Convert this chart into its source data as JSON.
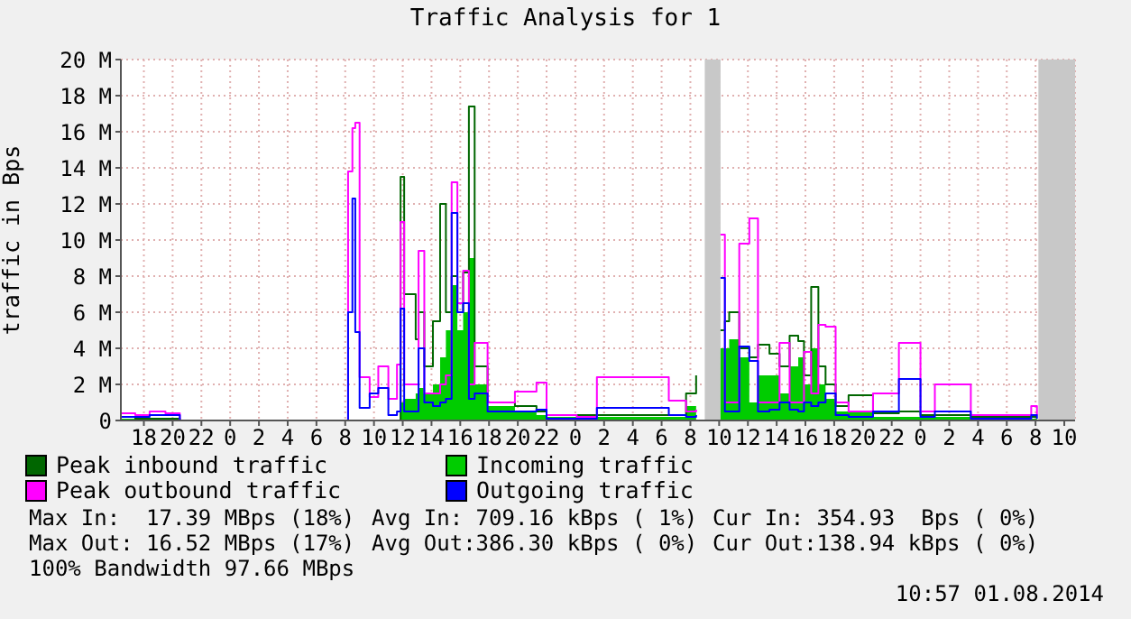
{
  "chart_data": {
    "type": "step",
    "title": "Traffic Analysis for 1",
    "ylabel": "traffic in Bps",
    "x": [
      "2014-07-29T16:24",
      "2014-07-29T17:24",
      "2014-07-29T18:24",
      "2014-07-29T19:30",
      "2014-07-29T20:30",
      "2014-07-30T00:24",
      "2014-07-30T07:48",
      "2014-07-30T08:12",
      "2014-07-30T08:30",
      "2014-07-30T08:42",
      "2014-07-30T09:00",
      "2014-07-30T09:42",
      "2014-07-30T10:18",
      "2014-07-30T11:00",
      "2014-07-30T11:36",
      "2014-07-30T11:51",
      "2014-07-30T12:06",
      "2014-07-30T12:54",
      "2014-07-30T13:06",
      "2014-07-30T13:30",
      "2014-07-30T14:06",
      "2014-07-30T14:36",
      "2014-07-30T15:00",
      "2014-07-30T15:24",
      "2014-07-30T15:48",
      "2014-07-30T16:12",
      "2014-07-30T16:36",
      "2014-07-30T17:00",
      "2014-07-30T17:54",
      "2014-07-30T19:48",
      "2014-07-30T21:18",
      "2014-07-30T22:00",
      "2014-07-31T00:06",
      "2014-07-31T01:30",
      "2014-07-31T06:30",
      "2014-07-31T07:42",
      "2014-07-31T08:24",
      "2014-07-31T09:00",
      "2014-07-31T10:06",
      "2014-07-31T10:24",
      "2014-07-31T10:42",
      "2014-07-31T11:24",
      "2014-07-31T12:06",
      "2014-07-31T12:42",
      "2014-07-31T13:30",
      "2014-07-31T14:12",
      "2014-07-31T14:54",
      "2014-07-31T15:30",
      "2014-07-31T15:54",
      "2014-07-31T16:24",
      "2014-07-31T16:54",
      "2014-07-31T17:24",
      "2014-07-31T18:06",
      "2014-07-31T19:00",
      "2014-07-31T20:42",
      "2014-07-31T22:30",
      "2014-08-01T00:00",
      "2014-08-01T01:00",
      "2014-08-01T03:30",
      "2014-08-01T07:42",
      "2014-08-01T08:06"
    ],
    "series": [
      {
        "name": "Peak inbound traffic",
        "color": "#006600",
        "values": [
          0.2,
          0.1,
          0.1,
          0.1,
          0,
          0,
          0,
          0,
          0,
          0,
          0,
          0,
          0,
          0,
          0,
          13.5,
          7,
          4.5,
          6,
          3,
          5.5,
          12,
          6,
          8,
          6,
          8.2,
          17.4,
          3,
          1,
          0.8,
          0.5,
          0.3,
          0.3,
          0.3,
          0.3,
          1.5,
          2.5,
          null,
          5,
          5.5,
          6,
          4,
          3.5,
          4.2,
          3.7,
          3,
          4.7,
          4.4,
          2.5,
          7.4,
          3,
          2,
          0.8,
          1.4,
          0.4,
          0.5,
          0.3,
          0.3,
          0.2,
          0.2,
          0.2
        ]
      },
      {
        "name": "Incoming traffic",
        "type": "area",
        "color": "#00cc00",
        "values": [
          0.1,
          0.1,
          0.1,
          0.1,
          0,
          0,
          0,
          0,
          0,
          0,
          0,
          0,
          0,
          0,
          0,
          1,
          1.2,
          1.5,
          1.8,
          1.5,
          2,
          3.5,
          5,
          7.5,
          5,
          6,
          9,
          2,
          0.8,
          0.5,
          0.3,
          0.2,
          0.2,
          0.2,
          0.2,
          0.8,
          1.5,
          null,
          4,
          4,
          4.5,
          3.5,
          1,
          2.5,
          2.5,
          1.5,
          3,
          3.5,
          2,
          4,
          2,
          1.2,
          0.5,
          0.5,
          0.2,
          0.2,
          0.2,
          0.2,
          0.1,
          0.1,
          0.1
        ]
      },
      {
        "name": "Peak outbound traffic",
        "color": "#ff00ff",
        "values": [
          0.4,
          0.3,
          0.5,
          0.4,
          0,
          0,
          0,
          13.8,
          16.2,
          16.5,
          2.4,
          1.3,
          3,
          1.2,
          3.1,
          11,
          2,
          2,
          9.4,
          1.5,
          1.5,
          2,
          2.5,
          13.2,
          6.5,
          8.3,
          2,
          4.3,
          1,
          1.6,
          2.1,
          0.3,
          0.2,
          2.4,
          1.1,
          0.5,
          0.6,
          null,
          10.3,
          1,
          1,
          9.8,
          11.2,
          1,
          1,
          4.3,
          1,
          1,
          3.8,
          1.5,
          5.3,
          5.2,
          1,
          0.5,
          1.5,
          4.3,
          0.5,
          2,
          0.3,
          0.8,
          0.3
        ]
      },
      {
        "name": "Outgoing traffic",
        "color": "#0000ff",
        "values": [
          0.2,
          0.2,
          0.3,
          0.3,
          0,
          0,
          0,
          6,
          12.3,
          4.9,
          0.7,
          1.5,
          1.8,
          0.3,
          0.5,
          6.2,
          0.5,
          0.5,
          4,
          1,
          0.8,
          1,
          1.2,
          11.5,
          6,
          6.5,
          1.2,
          1.5,
          0.5,
          0.5,
          0.6,
          0.1,
          0.1,
          0.7,
          0.3,
          0.2,
          0.3,
          null,
          7.9,
          0.5,
          0.5,
          4.1,
          3.3,
          0.5,
          0.6,
          1,
          0.6,
          0.5,
          1,
          0.8,
          1,
          1.5,
          0.3,
          0.2,
          0.5,
          2.3,
          0.2,
          0.5,
          0.1,
          0.3,
          0.1
        ]
      }
    ],
    "xlim": [
      "2014-07-29T16:24",
      "2014-08-01T10:45"
    ],
    "xticks": [
      {
        "value": "2014-07-29T18:00",
        "label": "18"
      },
      {
        "value": "2014-07-29T20:00",
        "label": "20"
      },
      {
        "value": "2014-07-29T22:00",
        "label": "22"
      },
      {
        "value": "2014-07-30T00:00",
        "label": "0"
      },
      {
        "value": "2014-07-30T02:00",
        "label": "2"
      },
      {
        "value": "2014-07-30T04:00",
        "label": "4"
      },
      {
        "value": "2014-07-30T06:00",
        "label": "6"
      },
      {
        "value": "2014-07-30T08:00",
        "label": "8"
      },
      {
        "value": "2014-07-30T10:00",
        "label": "10"
      },
      {
        "value": "2014-07-30T12:00",
        "label": "12"
      },
      {
        "value": "2014-07-30T14:00",
        "label": "14"
      },
      {
        "value": "2014-07-30T16:00",
        "label": "16"
      },
      {
        "value": "2014-07-30T18:00",
        "label": "18"
      },
      {
        "value": "2014-07-30T20:00",
        "label": "20"
      },
      {
        "value": "2014-07-30T22:00",
        "label": "22"
      },
      {
        "value": "2014-07-31T00:00",
        "label": "0"
      },
      {
        "value": "2014-07-31T02:00",
        "label": "2"
      },
      {
        "value": "2014-07-31T04:00",
        "label": "4"
      },
      {
        "value": "2014-07-31T06:00",
        "label": "6"
      },
      {
        "value": "2014-07-31T08:00",
        "label": "8"
      },
      {
        "value": "2014-07-31T10:00",
        "label": "10"
      },
      {
        "value": "2014-07-31T12:00",
        "label": "12"
      },
      {
        "value": "2014-07-31T14:00",
        "label": "14"
      },
      {
        "value": "2014-07-31T16:00",
        "label": "16"
      },
      {
        "value": "2014-07-31T18:00",
        "label": "18"
      },
      {
        "value": "2014-07-31T20:00",
        "label": "20"
      },
      {
        "value": "2014-07-31T22:00",
        "label": "22"
      },
      {
        "value": "2014-08-01T00:00",
        "label": "0"
      },
      {
        "value": "2014-08-01T02:00",
        "label": "2"
      },
      {
        "value": "2014-08-01T04:00",
        "label": "4"
      },
      {
        "value": "2014-08-01T06:00",
        "label": "6"
      },
      {
        "value": "2014-08-01T08:00",
        "label": "8"
      },
      {
        "value": "2014-08-01T10:00",
        "label": "10"
      }
    ],
    "ylim": [
      0,
      20
    ],
    "yticks": [
      0,
      {
        "value": 2,
        "label": "2 M"
      },
      {
        "value": 4,
        "label": "4 M"
      },
      {
        "value": 6,
        "label": "6 M"
      },
      {
        "value": 8,
        "label": "8 M"
      },
      {
        "value": 10,
        "label": "10 M"
      },
      {
        "value": 12,
        "label": "12 M"
      },
      {
        "value": 14,
        "label": "14 M"
      },
      {
        "value": 16,
        "label": "16 M"
      },
      {
        "value": 18,
        "label": "18 M"
      },
      {
        "value": 20,
        "label": "20 M"
      }
    ],
    "bands": [
      {
        "axis": "x",
        "from": "2014-07-31T09:00",
        "to": "2014-07-31T10:06",
        "color": "#c8c8c8"
      },
      {
        "axis": "x",
        "from": "2014-08-01T08:12",
        "to": "2014-08-01T10:45",
        "color": "#c8c8c8"
      }
    ],
    "grid": true,
    "legend": "bottom",
    "line_style": "solid",
    "marker": "none",
    "annotations": [
      "Max In:  17.39 MBps (18%)",
      "Avg In: 709.16 kBps ( 1%)",
      "Cur In: 354.93  Bps ( 0%)",
      "Max Out: 16.52 MBps (17%)",
      "Avg Out:386.30 kBps ( 0%)",
      "Cur Out:138.94 kBps ( 0%)",
      "100% Bandwidth 97.66 MBps",
      "10:57 01.08.2014"
    ]
  }
}
